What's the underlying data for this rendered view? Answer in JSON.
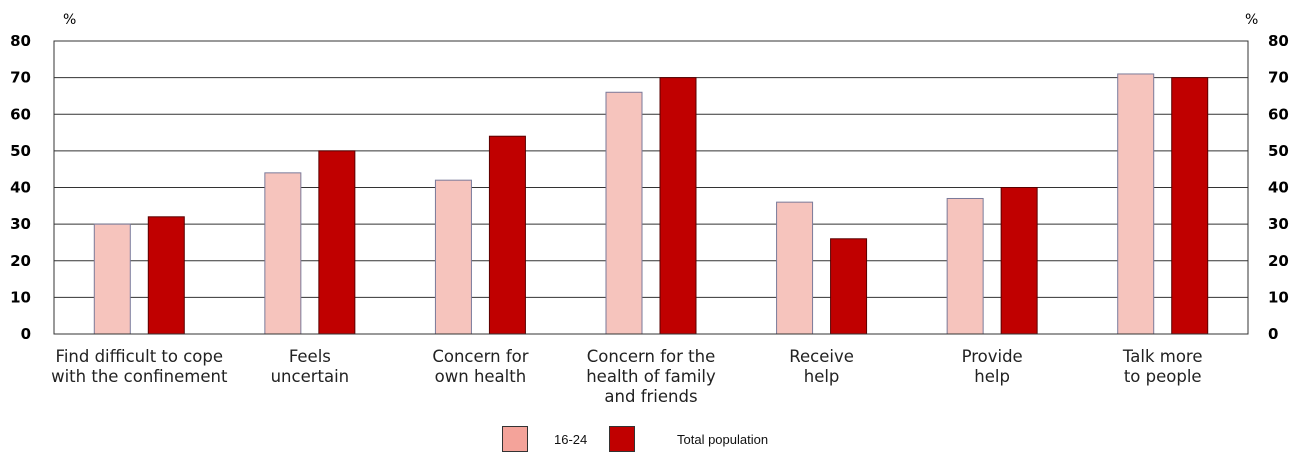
{
  "chart_data": {
    "type": "bar",
    "categories": [
      [
        "Find difficult to cope",
        "with the confinement"
      ],
      [
        "Feels",
        "uncertain"
      ],
      [
        "Concern for",
        "own health"
      ],
      [
        "Concern for the",
        "health of family",
        "and friends"
      ],
      [
        "Receive",
        "help"
      ],
      [
        "Provide",
        "help"
      ],
      [
        "Talk more",
        "to people"
      ]
    ],
    "series": [
      {
        "name": "16-24",
        "values": [
          30,
          44,
          42,
          66,
          36,
          37,
          71
        ],
        "color": "#f6c4bd",
        "legend_color": "#f4a39a"
      },
      {
        "name": "Total population",
        "values": [
          32,
          50,
          54,
          70,
          26,
          40,
          70
        ],
        "color": "#c00000",
        "legend_color": "#c00000"
      }
    ],
    "ylim": [
      0,
      80
    ],
    "yticks": [
      0,
      10,
      20,
      30,
      40,
      50,
      60,
      70,
      80
    ],
    "y_unit_left": "%",
    "y_unit_right": "%",
    "grid": true,
    "legend_position": "bottom-center"
  }
}
